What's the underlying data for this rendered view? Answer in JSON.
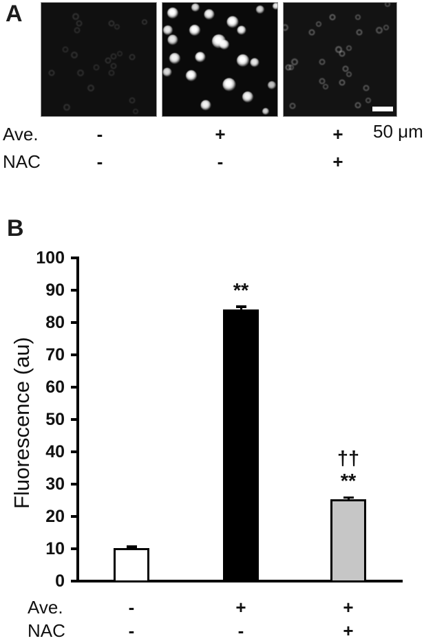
{
  "panel_a": {
    "label": "A",
    "scale_bar_text": "50 μm",
    "condition_rows": [
      {
        "name": "Ave.",
        "values": [
          "-",
          "+",
          "+"
        ]
      },
      {
        "name": "NAC",
        "values": [
          "-",
          "-",
          "+"
        ]
      }
    ],
    "micrographs": [
      {
        "name": "ave-minus-nac-minus",
        "cell_style": "ring",
        "bg": "#101010",
        "cells": [
          [
            30,
            12,
            11,
            0.15
          ],
          [
            33,
            18,
            10,
            0.14
          ],
          [
            31,
            24,
            10,
            0.13
          ],
          [
            61,
            18,
            10,
            0.15
          ],
          [
            66,
            21,
            9,
            0.13
          ],
          [
            90,
            17,
            9,
            0.16
          ],
          [
            21,
            41,
            10,
            0.12
          ],
          [
            29,
            46,
            11,
            0.14
          ],
          [
            58,
            51,
            10,
            0.14
          ],
          [
            63,
            47,
            10,
            0.13
          ],
          [
            68,
            45,
            9,
            0.12
          ],
          [
            79,
            48,
            10,
            0.14
          ],
          [
            63,
            56,
            10,
            0.13
          ],
          [
            9,
            62,
            10,
            0.15
          ],
          [
            34,
            62,
            11,
            0.13
          ],
          [
            61,
            62,
            10,
            0.12
          ],
          [
            48,
            57,
            10,
            0.12
          ],
          [
            43,
            75,
            11,
            0.14
          ],
          [
            79,
            86,
            10,
            0.13
          ],
          [
            22,
            92,
            11,
            0.15
          ],
          [
            82,
            96,
            9,
            0.12
          ]
        ]
      },
      {
        "name": "ave-plus-nac-minus",
        "cell_style": "blob",
        "bg": "#0a0a0a",
        "cells": [
          [
            9,
            9,
            16,
            1
          ],
          [
            29,
            4,
            12,
            0.85
          ],
          [
            41,
            10,
            15,
            0.95
          ],
          [
            61,
            17,
            17,
            1
          ],
          [
            85,
            6,
            12,
            0.8
          ],
          [
            99,
            3,
            10,
            0.9
          ],
          [
            5,
            24,
            14,
            0.9
          ],
          [
            28,
            24,
            16,
            1
          ],
          [
            69,
            24,
            13,
            0.95
          ],
          [
            9,
            33,
            15,
            0.9
          ],
          [
            49,
            34,
            20,
            1
          ],
          [
            54,
            37,
            14,
            0.95
          ],
          [
            11,
            49,
            16,
            0.95
          ],
          [
            33,
            48,
            15,
            1
          ],
          [
            70,
            51,
            18,
            1
          ],
          [
            80,
            53,
            13,
            0.9
          ],
          [
            4,
            61,
            13,
            0.85
          ],
          [
            25,
            64,
            16,
            1
          ],
          [
            58,
            72,
            19,
            1
          ],
          [
            95,
            73,
            12,
            0.75
          ],
          [
            74,
            83,
            16,
            0.95
          ],
          [
            38,
            90,
            15,
            0.95
          ],
          [
            90,
            96,
            10,
            0.8
          ]
        ]
      },
      {
        "name": "ave-plus-nac-plus",
        "cell_style": "ring",
        "bg": "#131313",
        "cells": [
          [
            1,
            22,
            11,
            0.3
          ],
          [
            25,
            26,
            10,
            0.32
          ],
          [
            31,
            19,
            9,
            0.3
          ],
          [
            43,
            13,
            10,
            0.35
          ],
          [
            66,
            13,
            9,
            0.3
          ],
          [
            67,
            26,
            10,
            0.33
          ],
          [
            85,
            24,
            11,
            0.3
          ],
          [
            91,
            22,
            9,
            0.28
          ],
          [
            49,
            41,
            11,
            0.35
          ],
          [
            52,
            45,
            10,
            0.33
          ],
          [
            58,
            40,
            9,
            0.3
          ],
          [
            34,
            52,
            10,
            0.3
          ],
          [
            10,
            52,
            11,
            0.33
          ],
          [
            4,
            57,
            10,
            0.35
          ],
          [
            7,
            57,
            9,
            0.3
          ],
          [
            55,
            58,
            10,
            0.32
          ],
          [
            58,
            63,
            9,
            0.3
          ],
          [
            52,
            70,
            10,
            0.33
          ],
          [
            34,
            69,
            10,
            0.3
          ],
          [
            37,
            74,
            9,
            0.28
          ],
          [
            73,
            75,
            10,
            0.3
          ],
          [
            66,
            90,
            10,
            0.32
          ],
          [
            75,
            86,
            9,
            0.3
          ],
          [
            8,
            91,
            10,
            0.3
          ],
          [
            92,
            1,
            9,
            0.28
          ]
        ]
      }
    ]
  },
  "chart_data": {
    "type": "bar",
    "panel_label": "B",
    "title": "",
    "xlabel": "",
    "ylabel": "Fluorescence (au)",
    "ylim": [
      0,
      100
    ],
    "yticks": [
      0,
      10,
      20,
      30,
      40,
      50,
      60,
      70,
      80,
      90,
      100
    ],
    "grid": false,
    "legend": null,
    "categories": [
      "Ave. - / NAC -",
      "Ave. + / NAC -",
      "Ave. + / NAC +"
    ],
    "values": [
      10.2,
      84.0,
      25.3
    ],
    "errors": [
      0.5,
      1.0,
      0.6
    ],
    "bar_colors": [
      "#ffffff",
      "#000000",
      "#c6c6c6"
    ],
    "bar_border_color": "#000000",
    "annotations": [
      {
        "bar_index": 1,
        "lines": [
          "**"
        ]
      },
      {
        "bar_index": 2,
        "lines": [
          "††",
          "**"
        ]
      }
    ],
    "condition_rows": [
      {
        "name": "Ave.",
        "values": [
          "-",
          "+",
          "+"
        ]
      },
      {
        "name": "NAC",
        "values": [
          "-",
          "-",
          "+"
        ]
      }
    ]
  }
}
